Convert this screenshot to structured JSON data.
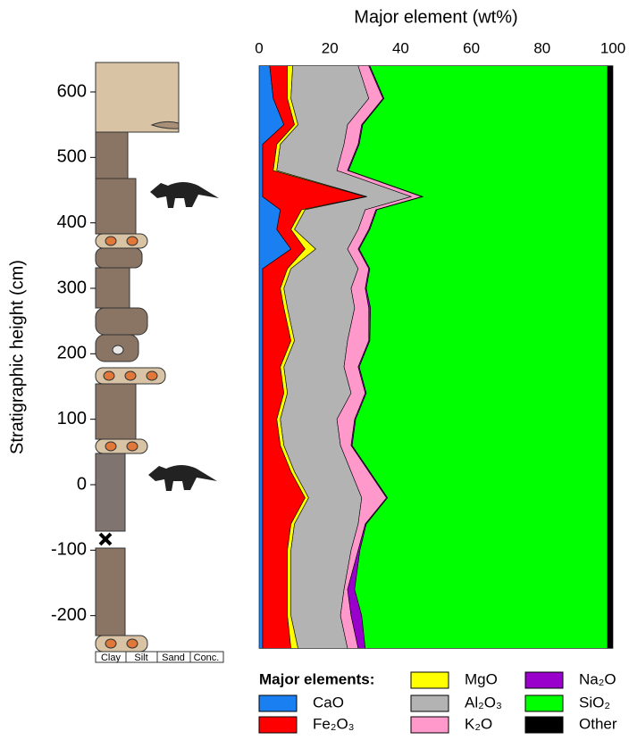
{
  "chart_data": {
    "type": "stacked_area",
    "orientation": "horizontal",
    "title": "Major element (wt%)",
    "xlabel": "Stratigraphic height (cm)",
    "legend_title": "Major elements:",
    "column_labels": [
      "Clay",
      "Silt",
      "Sand",
      "Conc."
    ],
    "x": [
      -250,
      -200,
      -160,
      -100,
      -60,
      -20,
      20,
      60,
      100,
      140,
      180,
      220,
      270,
      300,
      330,
      360,
      390,
      420,
      440,
      480,
      520,
      550,
      590,
      640
    ],
    "xlim": [
      -255,
      645
    ],
    "xticks": [
      -200,
      -100,
      0,
      100,
      200,
      300,
      400,
      500,
      600
    ],
    "ylim": [
      0,
      100
    ],
    "yticks": [
      0,
      20,
      40,
      60,
      80,
      100
    ],
    "series": [
      {
        "name": "CaO",
        "color": "#1a7ff0",
        "values": [
          1,
          1,
          1,
          1,
          1,
          1,
          1,
          1,
          1,
          1,
          1,
          1,
          1,
          1,
          1,
          9,
          5,
          6,
          1,
          1,
          1,
          7,
          4,
          3
        ]
      },
      {
        "name": "Fe₂O₃",
        "color": "#ff0000",
        "values": [
          8,
          7,
          7,
          7,
          8,
          12,
          8,
          5,
          4,
          6,
          5,
          8,
          6,
          5,
          7,
          4,
          4,
          6,
          29,
          3,
          4,
          3,
          4,
          5
        ]
      },
      {
        "name": "MgO",
        "color": "#ffff00",
        "values": [
          2,
          1,
          1,
          1,
          1,
          1,
          1,
          1,
          1,
          1,
          1,
          1,
          1,
          1,
          1,
          3,
          1,
          1,
          0.5,
          1,
          1,
          1,
          1,
          1.5
        ]
      },
      {
        "name": "Al₂O₃",
        "color": "#b3b3b3",
        "values": [
          14,
          14,
          15,
          17,
          18,
          15,
          16,
          16,
          16,
          18,
          17,
          15,
          19,
          19,
          19,
          9,
          18,
          17,
          12.5,
          17,
          18,
          14,
          22,
          18.5
        ]
      },
      {
        "name": "K₂O",
        "color": "#ff99cc",
        "values": [
          3,
          3,
          1,
          2,
          2,
          7,
          5,
          3,
          5,
          4,
          4,
          6,
          4,
          4,
          3,
          3,
          3,
          3,
          3,
          3,
          4,
          4,
          4,
          3
        ]
      },
      {
        "name": "Na₂O",
        "color": "#9900cc",
        "values": [
          2,
          3,
          2,
          0.5,
          0.3,
          0.3,
          0.3,
          0.3,
          0.3,
          0.3,
          0.3,
          0.3,
          0.5,
          0.3,
          0.3,
          0.3,
          0.3,
          0.3,
          0.3,
          0.3,
          0.3,
          0.3,
          0.3,
          0.3
        ]
      },
      {
        "name": "SiO₂",
        "color": "#00ff00",
        "values": [
          68.5,
          69.5,
          71.5,
          70,
          68.2,
          62.2,
          67.2,
          72.2,
          71.2,
          68.2,
          70.2,
          67.2,
          67,
          68.2,
          67.2,
          70.2,
          67.2,
          65.2,
          52.2,
          73.2,
          70.2,
          69.2,
          63.2,
          67.2
        ]
      },
      {
        "name": "Other",
        "color": "#000000",
        "values": [
          1.5,
          1.5,
          1.5,
          1.5,
          1.5,
          1.5,
          1.5,
          1.5,
          1.5,
          1.5,
          1.5,
          1.5,
          1.5,
          1.5,
          1.5,
          1.5,
          1.5,
          1.5,
          1.5,
          1.5,
          1.5,
          1.5,
          1.5,
          1.5
        ]
      }
    ]
  }
}
